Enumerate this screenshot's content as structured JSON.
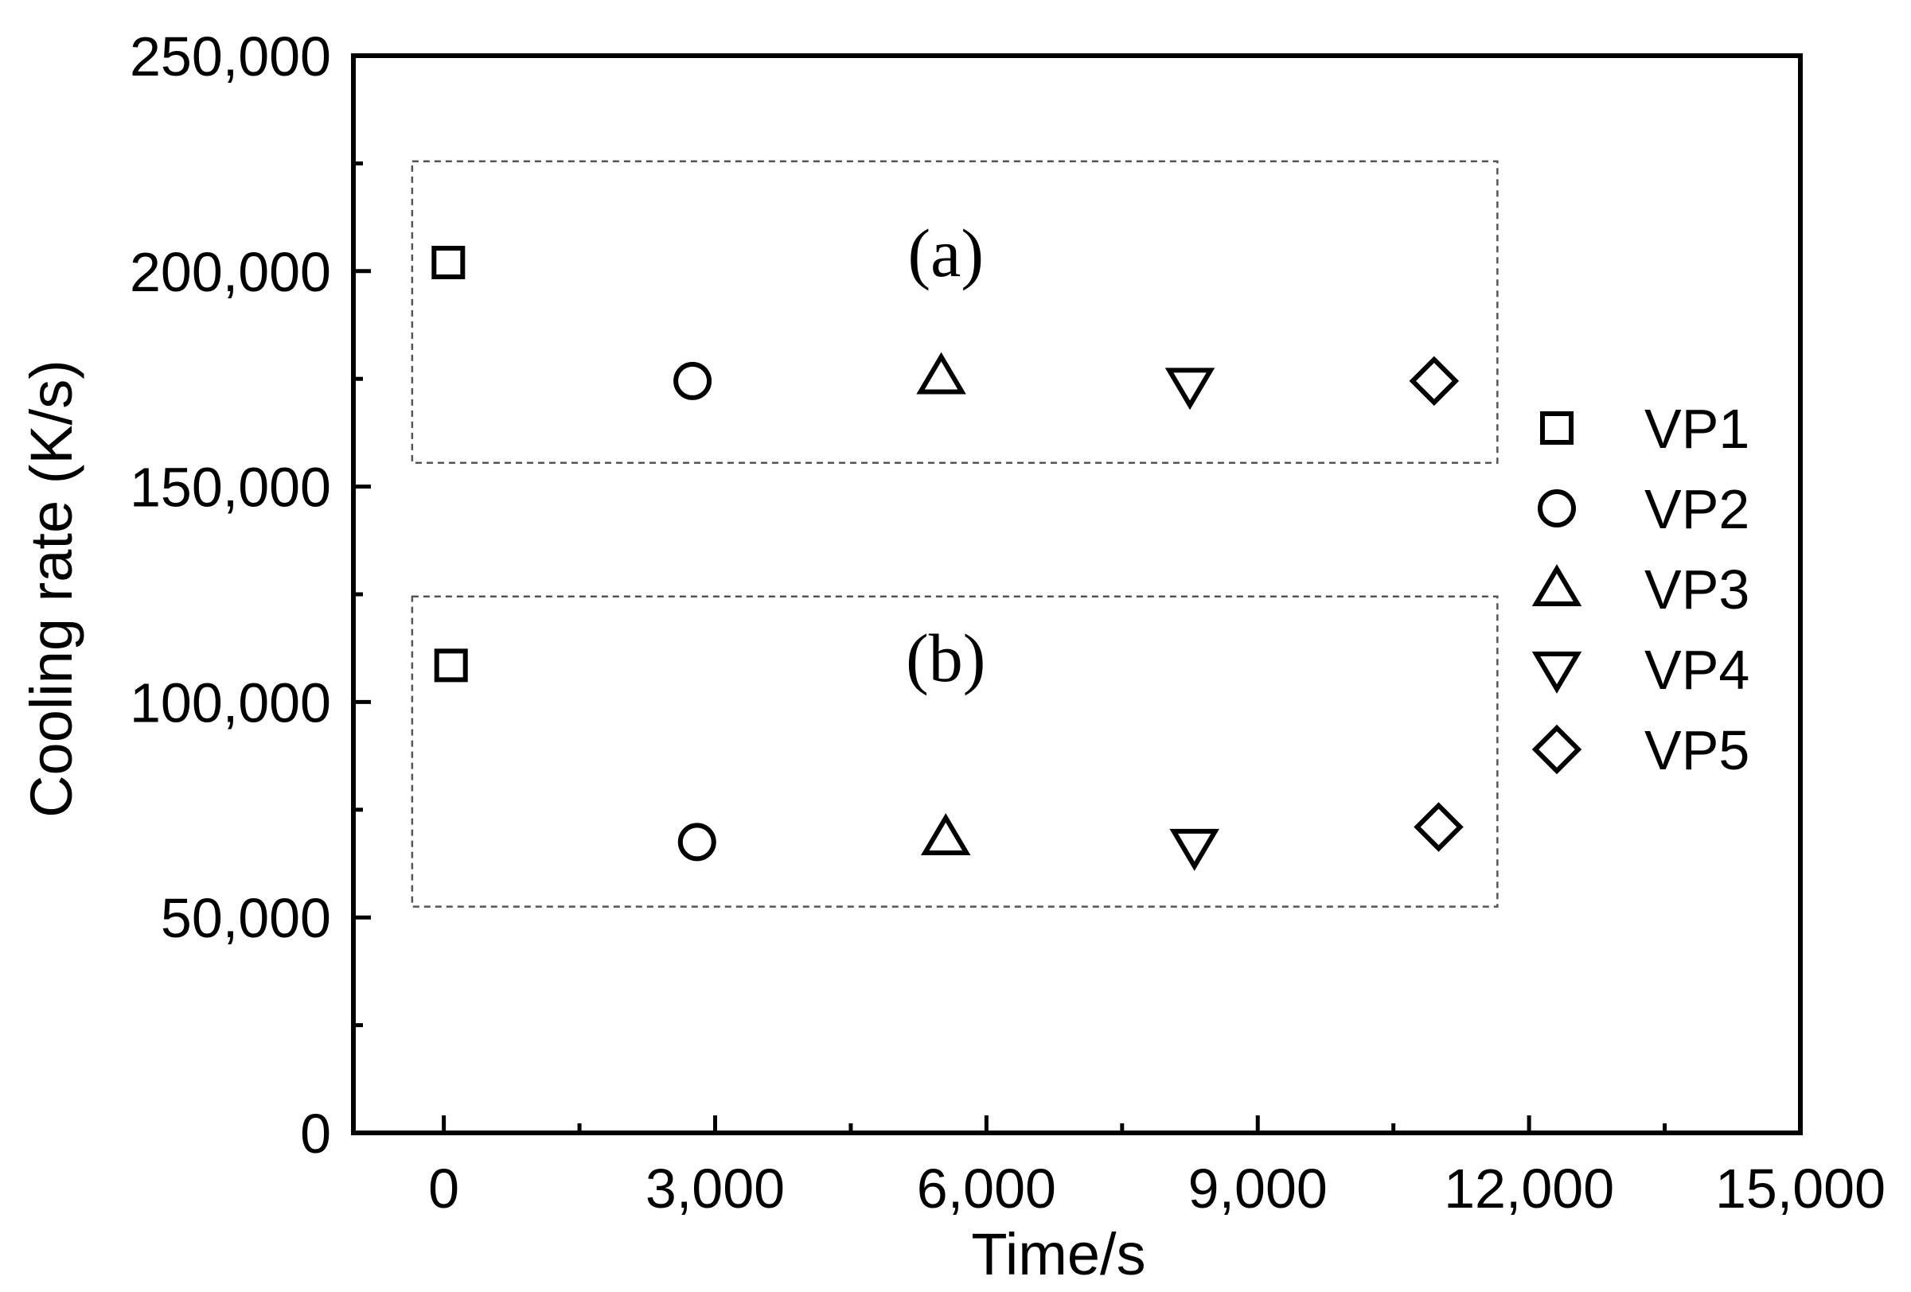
{
  "chart_data": {
    "type": "scatter",
    "xlabel": "Time/s",
    "ylabel": "Cooling rate (K/s)",
    "xlim": [
      -1000,
      15000
    ],
    "ylim": [
      0,
      250000
    ],
    "xticks": [
      0,
      3000,
      6000,
      9000,
      12000,
      15000
    ],
    "xtick_labels": [
      "0",
      "3,000",
      "6,000",
      "9,000",
      "12,000",
      "15,000"
    ],
    "yticks": [
      0,
      50000,
      100000,
      150000,
      200000,
      250000
    ],
    "ytick_labels": [
      "0",
      "50,000",
      "100,000",
      "150,000",
      "200,000",
      "250,000"
    ],
    "grid": false,
    "legend_position": "right",
    "series": [
      {
        "name": "VP1",
        "marker": "square",
        "x": [
          50,
          80
        ],
        "y": [
          202000,
          108500
        ]
      },
      {
        "name": "VP2",
        "marker": "circle",
        "x": [
          2750,
          2800
        ],
        "y": [
          174500,
          67500
        ]
      },
      {
        "name": "VP3",
        "marker": "triangle-up",
        "x": [
          5500,
          5550
        ],
        "y": [
          175500,
          68500
        ]
      },
      {
        "name": "VP4",
        "marker": "triangle-down",
        "x": [
          8250,
          8300
        ],
        "y": [
          173500,
          66500
        ]
      },
      {
        "name": "VP5",
        "marker": "diamond",
        "x": [
          10950,
          11000
        ],
        "y": [
          174500,
          71000
        ]
      }
    ],
    "annotations": [
      {
        "text": "(a)",
        "x": 5550,
        "y": 204000,
        "box": {
          "x0": -350,
          "x1": 11650,
          "y0": 155500,
          "y1": 225500
        }
      },
      {
        "text": "(b)",
        "x": 5550,
        "y": 110000,
        "box": {
          "x0": -350,
          "x1": 11650,
          "y0": 52500,
          "y1": 124500
        }
      }
    ]
  }
}
